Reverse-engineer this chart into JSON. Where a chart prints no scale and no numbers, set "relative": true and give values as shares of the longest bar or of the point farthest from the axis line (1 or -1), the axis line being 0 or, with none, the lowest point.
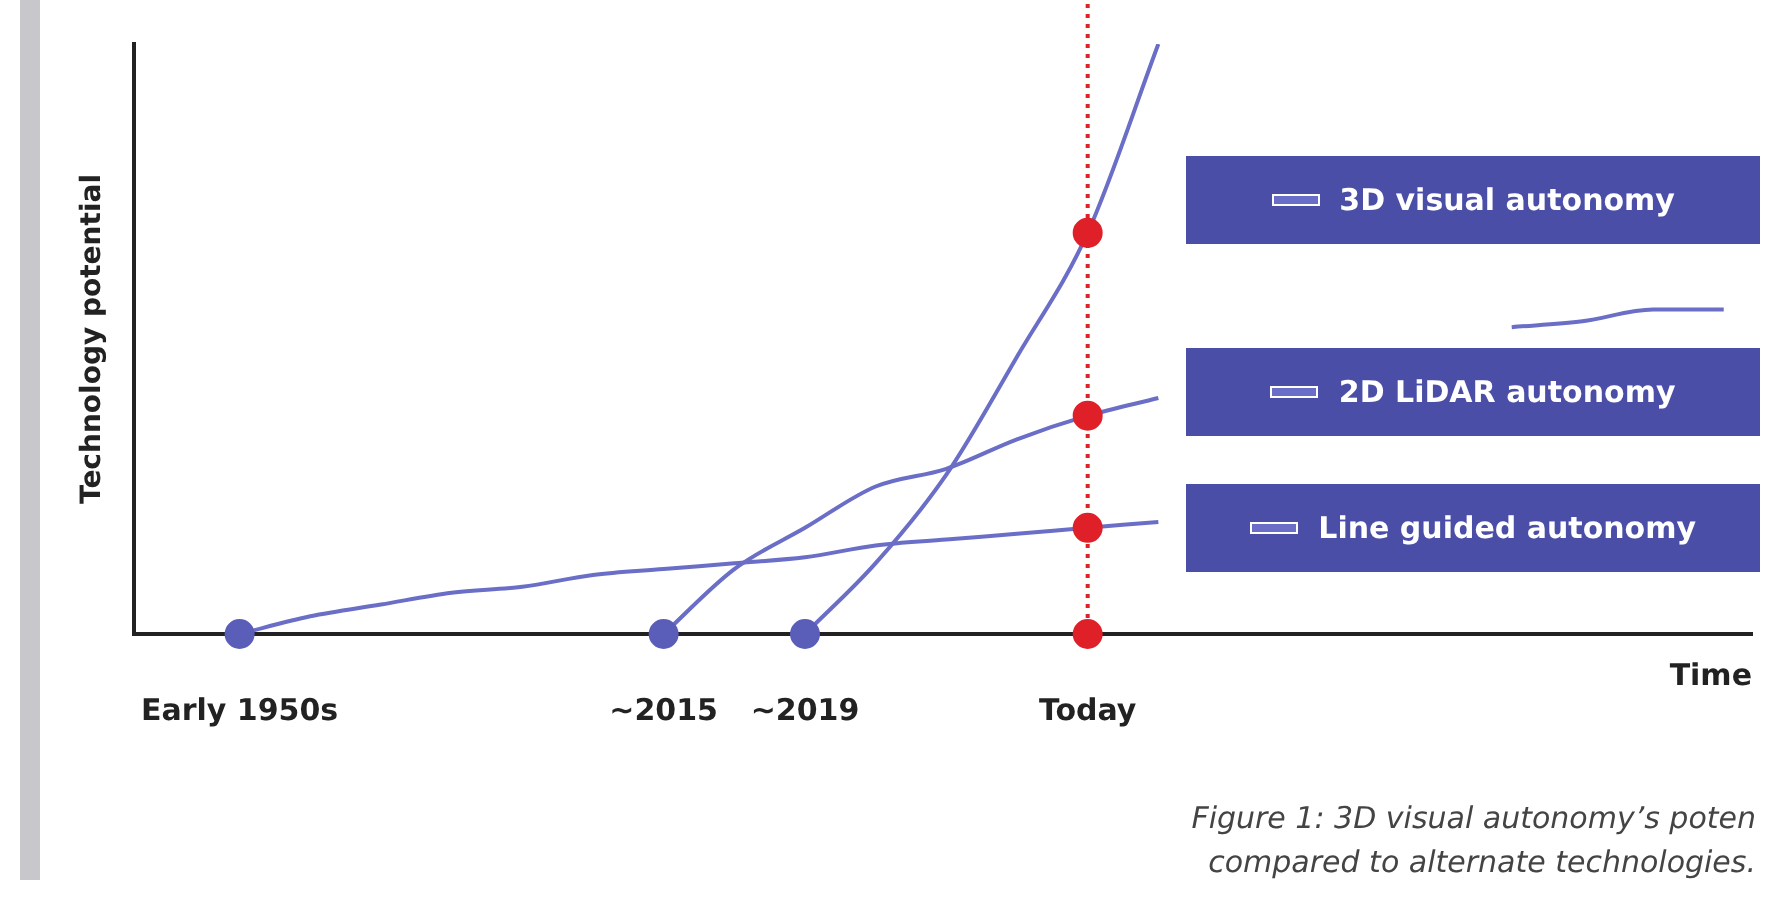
{
  "chart_data": {
    "type": "line",
    "relative": true,
    "xlabel": "Time",
    "ylabel": "Technology potential",
    "categories": [
      "Early 1950s",
      null,
      null,
      null,
      null,
      null,
      "~2015",
      null,
      "~2019",
      null,
      null,
      null,
      "Today",
      null,
      null,
      null,
      null,
      null,
      null,
      null,
      null,
      null
    ],
    "series": [
      {
        "type": "line",
        "name": "3D visual autonomy",
        "color": "#6a6ec6",
        "values": [
          null,
          null,
          null,
          null,
          null,
          null,
          null,
          null,
          0,
          0.12,
          0.27,
          0.47,
          0.68,
          1.0,
          null,
          null,
          null,
          null,
          null,
          null,
          null,
          null
        ]
      },
      {
        "type": "line",
        "name": "2D LiDAR autonomy",
        "color": "#6a6ec6",
        "values": [
          null,
          null,
          null,
          null,
          null,
          null,
          0,
          0.11,
          0.18,
          0.25,
          0.28,
          0.33,
          0.37,
          0.4,
          null,
          null,
          null,
          null,
          0.52,
          0.53,
          0.55,
          0.55
        ]
      },
      {
        "type": "line",
        "name": "Line guided autonomy",
        "color": "#6a6ec6",
        "values": [
          0,
          0.03,
          0.05,
          0.07,
          0.08,
          0.1,
          0.11,
          0.12,
          0.13,
          0.15,
          0.16,
          0.17,
          0.18,
          0.19,
          null,
          null,
          null,
          null,
          null,
          null,
          null,
          null
        ]
      },
      {
        "type": "scatter",
        "color": "#5a5eb8",
        "marker": "circle",
        "x": [
          "Early 1950s",
          "~2015",
          "~2019"
        ],
        "values": [
          0,
          0,
          0
        ]
      },
      {
        "type": "scatter",
        "color": "#e02028",
        "marker": "circle",
        "x": [
          "Today",
          "Today",
          "Today",
          "Today"
        ],
        "values": [
          0.68,
          0.37,
          0.18,
          0
        ]
      }
    ],
    "ref_lines": [
      {
        "axis": "x",
        "value": "Today",
        "color": "#e02028",
        "line_style": "dotted"
      }
    ],
    "annotations": [
      "Figure 1: 3D visual autonomy’s poten",
      "compared to alternate technologies."
    ],
    "grid": false,
    "legend": "right",
    "marker": "none",
    "line_style": "solid"
  }
}
